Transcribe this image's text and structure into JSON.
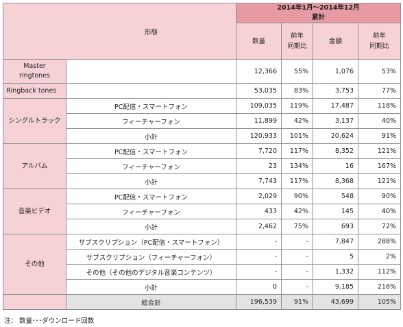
{
  "header": {
    "period": "2014年1月〜2014年12月",
    "period_sub": "累計",
    "form_label": "形態",
    "col_qty": "数量",
    "col_qty_yoy_1": "前年",
    "col_qty_yoy_2": "同期比",
    "col_amt": "金額",
    "col_amt_yoy_1": "前年",
    "col_amt_yoy_2": "同期比"
  },
  "rows": {
    "master": {
      "cat_1": "Master",
      "cat_2": "ringtones",
      "qty": "12,366",
      "qty_yoy": "55%",
      "amt": "1,076",
      "amt_yoy": "53%"
    },
    "ringback": {
      "cat": "Ringback tones",
      "qty": "53,035",
      "qty_yoy": "83%",
      "amt": "3,753",
      "amt_yoy": "77%"
    },
    "single": {
      "cat": "シングルトラック",
      "pc": {
        "label": "PC配信・スマートフォン",
        "qty": "109,035",
        "qty_yoy": "119%",
        "amt": "17,487",
        "amt_yoy": "118%"
      },
      "fp": {
        "label": "フィーチャーフォン",
        "qty": "11,899",
        "qty_yoy": "42%",
        "amt": "3,137",
        "amt_yoy": "40%"
      },
      "sub": {
        "label": "小計",
        "qty": "120,933",
        "qty_yoy": "101%",
        "amt": "20,624",
        "amt_yoy": "91%"
      }
    },
    "album": {
      "cat": "アルバム",
      "pc": {
        "label": "PC配信・スマートフォン",
        "qty": "7,720",
        "qty_yoy": "117%",
        "amt": "8,352",
        "amt_yoy": "121%"
      },
      "fp": {
        "label": "フィーチャーフォン",
        "qty": "23",
        "qty_yoy": "134%",
        "amt": "16",
        "amt_yoy": "167%"
      },
      "sub": {
        "label": "小計",
        "qty": "7,743",
        "qty_yoy": "117%",
        "amt": "8,368",
        "amt_yoy": "121%"
      }
    },
    "video": {
      "cat": "音楽ビデオ",
      "pc": {
        "label": "PC配信・スマートフォン",
        "qty": "2,029",
        "qty_yoy": "90%",
        "amt": "548",
        "amt_yoy": "90%"
      },
      "fp": {
        "label": "フィーチャーフォン",
        "qty": "433",
        "qty_yoy": "42%",
        "amt": "145",
        "amt_yoy": "40%"
      },
      "sub": {
        "label": "小計",
        "qty": "2,462",
        "qty_yoy": "75%",
        "amt": "693",
        "amt_yoy": "72%"
      }
    },
    "other": {
      "cat": "その他",
      "subs_pc": {
        "label": "サブスクリプション（PC配信・スマートフォン）",
        "qty": "-",
        "qty_yoy": "-",
        "amt": "7,847",
        "amt_yoy": "288%"
      },
      "subs_fp": {
        "label": "サブスクリプション（フィーチャーフォン）",
        "qty": "-",
        "qty_yoy": "-",
        "amt": "5",
        "amt_yoy": "2%"
      },
      "digital": {
        "label": "その他（その他のデジタル音楽コンテンツ）",
        "qty": "-",
        "qty_yoy": "-",
        "amt": "1,332",
        "amt_yoy": "112%"
      },
      "sub": {
        "label": "小計",
        "qty": "0",
        "qty_yoy": "-",
        "amt": "9,185",
        "amt_yoy": "216%"
      }
    },
    "total": {
      "label": "総合計",
      "qty": "196,539",
      "qty_yoy": "91%",
      "amt": "43,699",
      "amt_yoy": "105%"
    }
  },
  "note": "注：  数量･･･ダウンロード回数"
}
